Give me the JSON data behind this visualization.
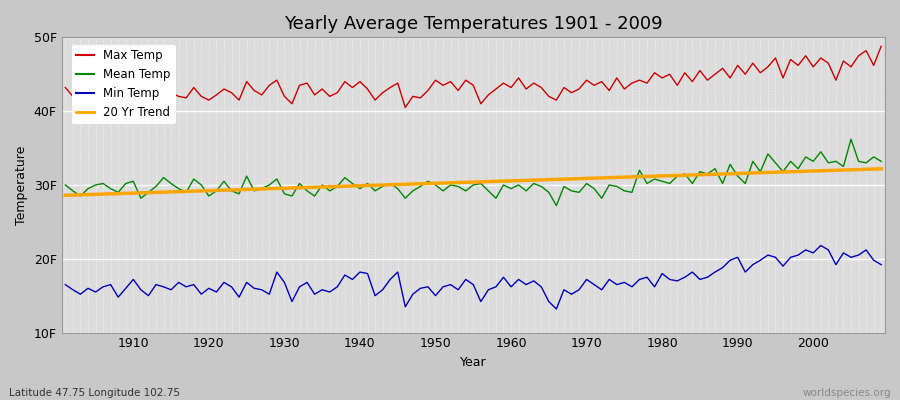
{
  "title": "Yearly Average Temperatures 1901 - 2009",
  "xlabel": "Year",
  "ylabel": "Temperature",
  "lat_lon_label": "Latitude 47.75 Longitude 102.75",
  "source_label": "worldspecies.org",
  "ylim_bottom": 10,
  "ylim_top": 50,
  "yticks": [
    10,
    20,
    30,
    40,
    50
  ],
  "ytick_labels": [
    "10F",
    "20F",
    "30F",
    "40F",
    "50F"
  ],
  "xmin": 1901,
  "xmax": 2009,
  "fig_bg_color": "#c8c8c8",
  "plot_bg_color": "#dcdcdc",
  "legend_colors": [
    "#cc0000",
    "#008800",
    "#0000bb",
    "#ffa500"
  ],
  "legend_items": [
    "Max Temp",
    "Mean Temp",
    "Min Temp",
    "20 Yr Trend"
  ],
  "line_colors": {
    "max": "#cc0000",
    "mean": "#008800",
    "min": "#0000bb",
    "trend": "#ffa500"
  },
  "max_temps": [
    43.2,
    42.0,
    41.5,
    42.8,
    42.5,
    42.0,
    41.5,
    42.2,
    43.5,
    42.0,
    41.2,
    42.5,
    43.0,
    44.2,
    42.5,
    42.0,
    41.8,
    43.2,
    42.0,
    41.5,
    42.2,
    43.0,
    42.5,
    41.5,
    44.0,
    42.8,
    42.2,
    43.5,
    44.2,
    42.0,
    41.0,
    43.5,
    43.8,
    42.2,
    43.0,
    42.0,
    42.5,
    44.0,
    43.2,
    44.0,
    43.0,
    41.5,
    42.5,
    43.2,
    43.8,
    40.5,
    42.0,
    41.8,
    42.8,
    44.2,
    43.5,
    44.0,
    42.8,
    44.2,
    43.5,
    41.0,
    42.2,
    43.0,
    43.8,
    43.2,
    44.5,
    43.0,
    43.8,
    43.2,
    42.0,
    41.5,
    43.2,
    42.5,
    43.0,
    44.2,
    43.5,
    44.0,
    42.8,
    44.5,
    43.0,
    43.8,
    44.2,
    43.8,
    45.2,
    44.5,
    45.0,
    43.5,
    45.2,
    44.0,
    45.5,
    44.2,
    45.0,
    45.8,
    44.5,
    46.2,
    45.0,
    46.5,
    45.2,
    46.0,
    47.2,
    44.5,
    47.0,
    46.2,
    47.5,
    46.0,
    47.2,
    46.5,
    44.2,
    46.8,
    46.0,
    47.5,
    48.2,
    46.2,
    48.8
  ],
  "mean_temps": [
    30.0,
    29.2,
    28.5,
    29.5,
    30.0,
    30.2,
    29.5,
    29.0,
    30.2,
    30.5,
    28.2,
    29.0,
    29.8,
    31.0,
    30.2,
    29.5,
    29.0,
    30.8,
    30.0,
    28.5,
    29.2,
    30.5,
    29.2,
    28.8,
    31.2,
    29.2,
    29.5,
    30.0,
    30.8,
    28.8,
    28.5,
    30.2,
    29.2,
    28.5,
    30.0,
    29.2,
    29.8,
    31.0,
    30.2,
    29.5,
    30.2,
    29.2,
    29.8,
    30.2,
    29.5,
    28.2,
    29.2,
    29.8,
    30.5,
    30.0,
    29.2,
    30.0,
    29.8,
    29.2,
    30.0,
    30.2,
    29.2,
    28.2,
    30.0,
    29.5,
    30.0,
    29.2,
    30.2,
    29.8,
    29.0,
    27.2,
    29.8,
    29.2,
    29.0,
    30.2,
    29.5,
    28.2,
    30.0,
    29.8,
    29.2,
    29.0,
    32.0,
    30.2,
    30.8,
    30.5,
    30.2,
    31.2,
    31.5,
    30.2,
    31.8,
    31.5,
    32.2,
    30.2,
    32.8,
    31.2,
    30.2,
    33.2,
    31.8,
    34.2,
    33.0,
    31.8,
    33.2,
    32.2,
    33.8,
    33.2,
    34.5,
    33.0,
    33.2,
    32.5,
    36.2,
    33.2,
    33.0,
    33.8,
    33.2
  ],
  "min_temps": [
    16.5,
    15.8,
    15.2,
    16.0,
    15.5,
    16.2,
    16.5,
    14.8,
    16.0,
    17.2,
    15.8,
    15.0,
    16.5,
    16.2,
    15.8,
    16.8,
    16.2,
    16.5,
    15.2,
    16.0,
    15.5,
    16.8,
    16.2,
    14.8,
    16.8,
    16.0,
    15.8,
    15.2,
    18.2,
    16.8,
    14.2,
    16.2,
    16.8,
    15.2,
    15.8,
    15.5,
    16.2,
    17.8,
    17.2,
    18.2,
    18.0,
    15.0,
    15.8,
    17.2,
    18.2,
    13.5,
    15.2,
    16.0,
    16.2,
    15.0,
    16.2,
    16.5,
    15.8,
    17.2,
    16.5,
    14.2,
    15.8,
    16.2,
    17.5,
    16.2,
    17.2,
    16.5,
    17.0,
    16.2,
    14.2,
    13.2,
    15.8,
    15.2,
    15.8,
    17.2,
    16.5,
    15.8,
    17.2,
    16.5,
    16.8,
    16.2,
    17.2,
    17.5,
    16.2,
    18.0,
    17.2,
    17.0,
    17.5,
    18.2,
    17.2,
    17.5,
    18.2,
    18.8,
    19.8,
    20.2,
    18.2,
    19.2,
    19.8,
    20.5,
    20.2,
    19.0,
    20.2,
    20.5,
    21.2,
    20.8,
    21.8,
    21.2,
    19.2,
    20.8,
    20.2,
    20.5,
    21.2,
    19.8,
    19.2
  ]
}
